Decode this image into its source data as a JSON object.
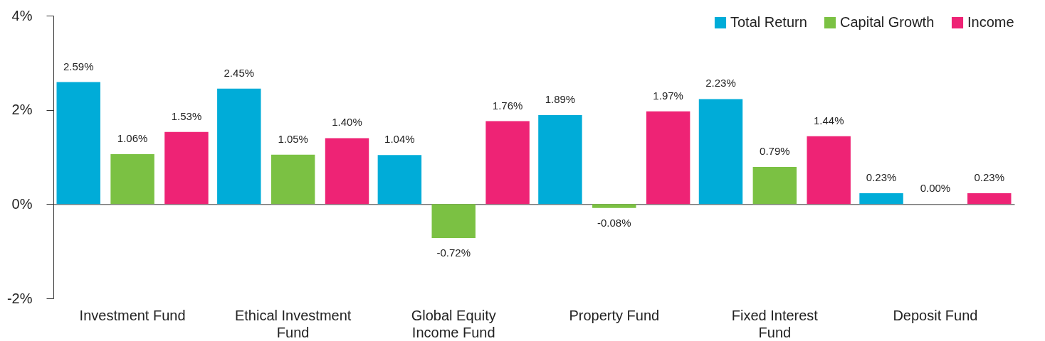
{
  "chart_data": {
    "type": "bar",
    "categories": [
      "Investment Fund",
      "Ethical Investment Fund",
      "Global Equity Income Fund",
      "Property Fund",
      "Fixed Interest Fund",
      "Deposit Fund"
    ],
    "series": [
      {
        "name": "Total Return",
        "color": "#00acd8",
        "values": [
          2.59,
          2.45,
          1.04,
          1.89,
          2.23,
          0.23
        ],
        "value_labels": [
          "2.59%",
          "2.45%",
          "1.04%",
          "1.89%",
          "2.23%",
          "0.23%"
        ]
      },
      {
        "name": "Capital Growth",
        "color": "#7bc143",
        "values": [
          1.06,
          1.05,
          -0.72,
          -0.08,
          0.79,
          0.0
        ],
        "value_labels": [
          "1.06%",
          "1.05%",
          "-0.72%",
          "-0.08%",
          "0.79%",
          "0.00%"
        ]
      },
      {
        "name": "Income",
        "color": "#ee2375",
        "values": [
          1.53,
          1.4,
          1.76,
          1.97,
          1.44,
          0.23
        ],
        "value_labels": [
          "1.53%",
          "1.40%",
          "1.76%",
          "1.97%",
          "1.44%",
          "0.23%"
        ]
      }
    ],
    "ylim": [
      -2,
      4
    ],
    "yticks": [
      {
        "value": -2,
        "label": "-2%"
      },
      {
        "value": 0,
        "label": "0%"
      },
      {
        "value": 2,
        "label": "2%"
      },
      {
        "value": 4,
        "label": "4%"
      }
    ],
    "legend": "top right"
  }
}
